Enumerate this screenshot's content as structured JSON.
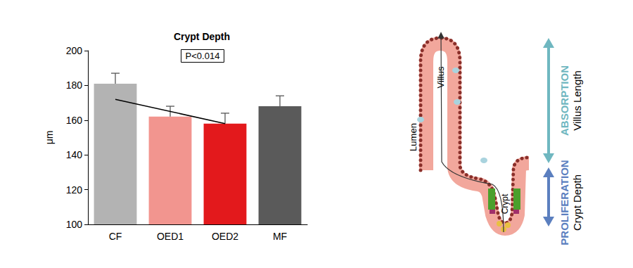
{
  "chart_data": {
    "type": "bar",
    "title": "Crypt Depth",
    "annotation": "P<0.014",
    "y_label": "μm",
    "categories": [
      "CF",
      "OED1",
      "OED2",
      "MF"
    ],
    "values": [
      181,
      162,
      158,
      168
    ],
    "errors": [
      6,
      6,
      6,
      6
    ],
    "colors": [
      "#b3b3b3",
      "#f2958f",
      "#e3191c",
      "#5a5a5a"
    ],
    "ylim": [
      100,
      200
    ],
    "yticks": [
      100,
      120,
      140,
      160,
      180,
      200
    ],
    "grid": false,
    "arrow": {
      "from": {
        "category": "CF",
        "value": 172
      },
      "to": {
        "category": "OED2",
        "value": 158
      }
    }
  },
  "diagram": {
    "lumen": "Lumen",
    "villus": "Villus",
    "crypt": "Crypt",
    "absorption": "ABSORPTION",
    "villus_length": "Villus Length",
    "proliferation": "PROLIFERATION",
    "crypt_depth": "Crypt Depth"
  }
}
